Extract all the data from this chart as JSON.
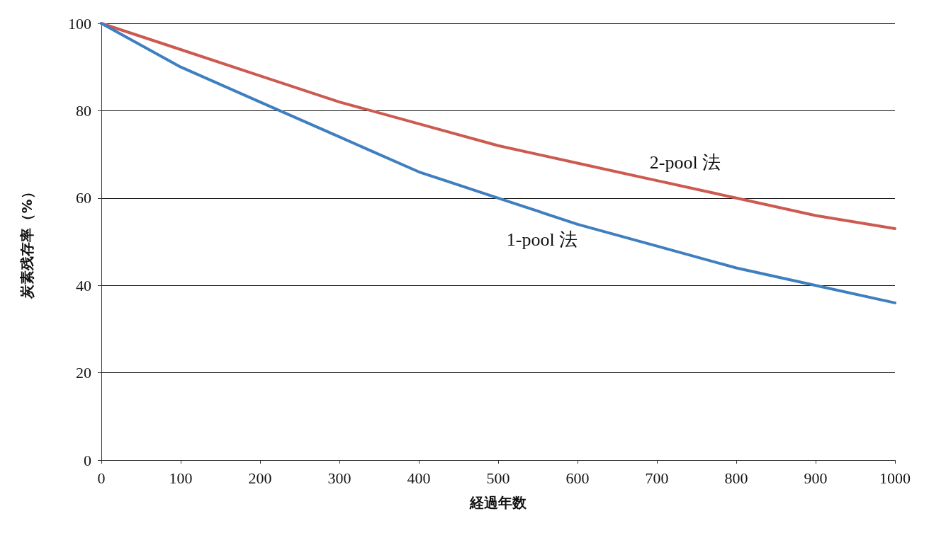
{
  "chart_data": {
    "type": "line",
    "xlabel": "経過年数",
    "ylabel": "炭素残存率（%）",
    "x": [
      0,
      100,
      200,
      300,
      400,
      500,
      600,
      700,
      800,
      900,
      1000
    ],
    "series": [
      {
        "name": "2-pool 法",
        "color": "#cc5a50",
        "values": [
          100,
          94,
          88,
          82,
          77,
          72,
          68,
          64,
          60,
          56,
          53
        ]
      },
      {
        "name": "1-pool 法",
        "color": "#3f7fbf",
        "values": [
          100,
          90,
          82,
          74,
          66,
          60,
          54,
          49,
          44,
          40,
          36
        ]
      }
    ],
    "xlim": [
      0,
      1000
    ],
    "xticks": [
      0,
      100,
      200,
      300,
      400,
      500,
      600,
      700,
      800,
      900,
      1000
    ],
    "ylim": [
      0,
      100
    ],
    "yticks": [
      0,
      20,
      40,
      60,
      80,
      100
    ],
    "grid": "y"
  }
}
